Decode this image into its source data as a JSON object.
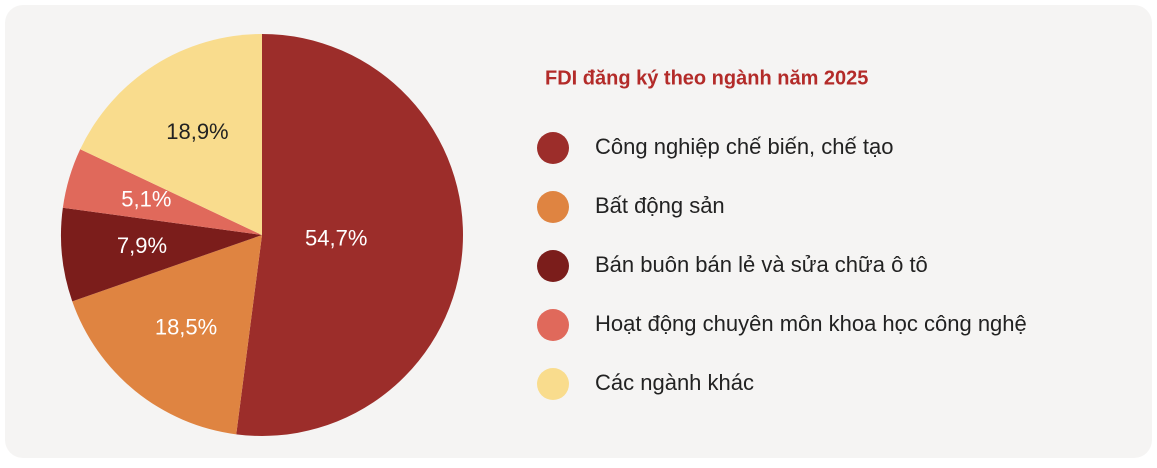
{
  "chart_data": {
    "type": "pie",
    "title": "FDI đăng ký theo ngành năm 2025",
    "categories": [
      "Công nghiệp chế biến, chế tạo",
      "Bất động sản",
      "Bán buôn bán lẻ và sửa chữa ô tô",
      "Hoạt động chuyên môn khoa học công nghệ",
      "Các ngành khác"
    ],
    "values": [
      54.7,
      18.5,
      7.9,
      5.1,
      18.9
    ],
    "value_labels": [
      "54,7%",
      "18,5%",
      "7,9%",
      "5,1%",
      "18,9%"
    ],
    "colors": [
      "#9c2d2a",
      "#df8441",
      "#7b1d1b",
      "#e0695b",
      "#f9dc8d"
    ],
    "label_colors": [
      "#ffffff",
      "#ffffff",
      "#ffffff",
      "#ffffff",
      "#222222"
    ]
  }
}
